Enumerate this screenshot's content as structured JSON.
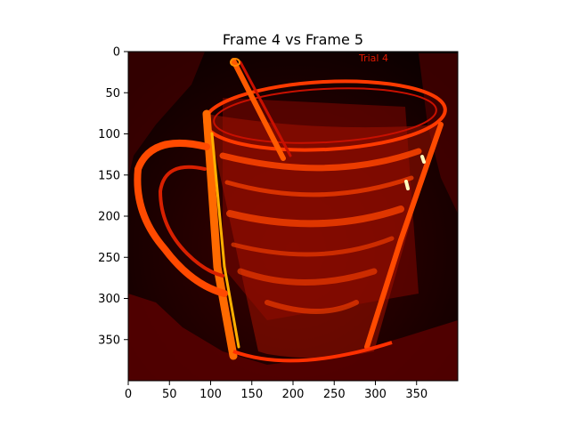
{
  "chart_data": {
    "type": "heatmap",
    "title": "Frame 4 vs Frame 5",
    "xlabel": "",
    "ylabel": "",
    "image_width": 400,
    "image_height": 400,
    "xlim": [
      0,
      400
    ],
    "ylim": [
      400,
      0
    ],
    "x_ticks": [
      0,
      50,
      100,
      150,
      200,
      250,
      300,
      350
    ],
    "y_ticks": [
      0,
      50,
      100,
      150,
      200,
      250,
      300,
      350
    ],
    "x_tick_labels": [
      "0",
      "50",
      "100",
      "150",
      "200",
      "250",
      "300",
      "350"
    ],
    "y_tick_labels": [
      "0",
      "50",
      "100",
      "150",
      "200",
      "250",
      "300",
      "350"
    ],
    "colormap": "hot",
    "grid": false,
    "legend": "none",
    "annotations": [
      {
        "text": "Trial 4",
        "x": 280,
        "y": 8
      }
    ]
  },
  "colors": {
    "background": "#ffffff",
    "image_base": "#0b0000",
    "hot_dark": "#5a0000",
    "hot_mid": "#c81000",
    "hot_bright": "#ff5a00",
    "hot_peak": "#ffffc0"
  }
}
